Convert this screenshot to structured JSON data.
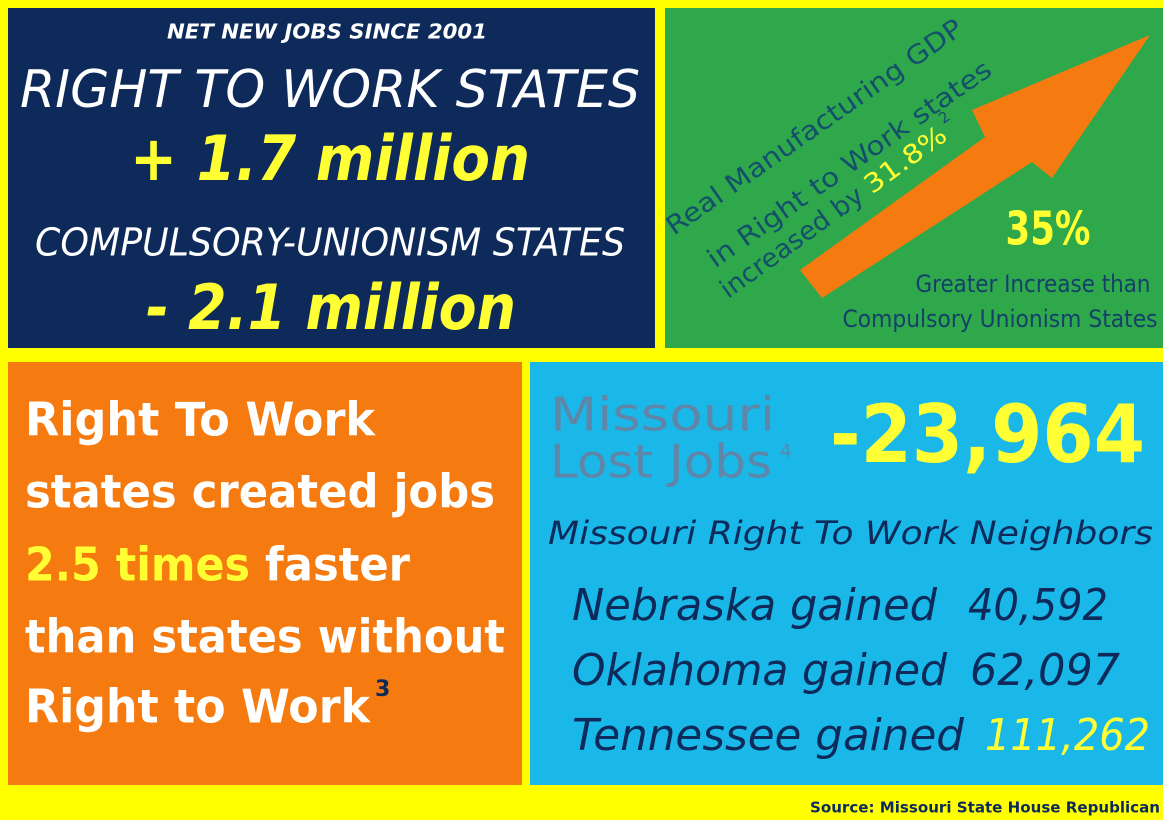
{
  "jobs_panel": {
    "heading": "NET NEW JOBS SINCE 2001",
    "rtw_label": "RIGHT TO WORK STATES",
    "rtw_value": "+ 1.7 million",
    "cu_label": "COMPULSORY-UNIONISM STATES",
    "cu_value": "- 2.1 million"
  },
  "gdp_panel": {
    "lines": [
      "Real Manufacturing GDP",
      "in Right to Work states",
      "increased by"
    ],
    "percent": "31.8%",
    "footnote": "2",
    "big": "35%",
    "caption_lines": [
      "Greater Increase than",
      "Compulsory Unionism States"
    ]
  },
  "growth_panel": {
    "line1": "Right To Work",
    "line2": "states created jobs",
    "highlight": "2.5 times",
    "line3_rest": "faster",
    "line4": "than states without",
    "line5": "Right to Work",
    "footnote": "3"
  },
  "missouri_panel": {
    "label_lines": [
      "Missouri",
      "Lost Jobs"
    ],
    "footnote": "4",
    "lost": "-23,964",
    "neighbors_heading": "Missouri Right To Work Neighbors",
    "neighbors": [
      {
        "text": "Nebraska gained",
        "value": "40,592"
      },
      {
        "text": "Oklahoma gained",
        "value": "62,097"
      },
      {
        "text": "Tennessee gained",
        "value": "111,262"
      }
    ]
  },
  "source": "Source: Missouri State House Republican"
}
